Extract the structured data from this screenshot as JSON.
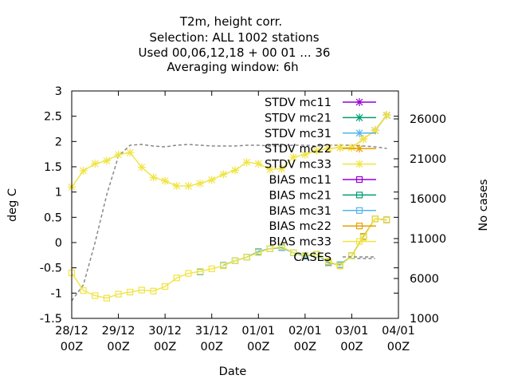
{
  "chart_data": {
    "type": "line",
    "title_lines": [
      "T2m, height corr.",
      "Selection: ALL    1002 stations",
      "Used  00,06,12,18  + 00 01 ... 36",
      "Averaging window:  6h"
    ],
    "xlabel": "Date",
    "ylabel": "deg C",
    "y2label": "No cases",
    "x_ticks": [
      {
        "line1": "28/12",
        "line2": "00Z"
      },
      {
        "line1": "29/12",
        "line2": "00Z"
      },
      {
        "line1": "30/12",
        "line2": "00Z"
      },
      {
        "line1": "31/12",
        "line2": "00Z"
      },
      {
        "line1": "01/01",
        "line2": "00Z"
      },
      {
        "line1": "02/01",
        "line2": "00Z"
      },
      {
        "line1": "03/01",
        "line2": "00Z"
      },
      {
        "line1": "04/01",
        "line2": "00Z"
      }
    ],
    "xlim": [
      0,
      168
    ],
    "ylim": [
      -1.5,
      3
    ],
    "y_ticks": [
      "-1.5",
      "-1",
      "-0.5",
      "0",
      "0.5",
      "1",
      "1.5",
      "2",
      "2.5",
      "3"
    ],
    "y2lim": [
      1000,
      29500
    ],
    "y2_ticks": [
      "1000",
      "6000",
      "11000",
      "16000",
      "21000",
      "26000"
    ],
    "x_hours": [
      0,
      6,
      12,
      18,
      24,
      30,
      36,
      42,
      48,
      54,
      60,
      66,
      72,
      78,
      84,
      90,
      96,
      102,
      108,
      114,
      120,
      126,
      132,
      138,
      144,
      150,
      156,
      162
    ],
    "series": [
      {
        "name": "STDV mc11",
        "color": "#9400d3",
        "marker": "cross",
        "axis": "y",
        "y": [
          null,
          null,
          null,
          null,
          null,
          null,
          null,
          null,
          null,
          null,
          null,
          null,
          null,
          null,
          null,
          null,
          null,
          null,
          null,
          null,
          null,
          null,
          null,
          null,
          null,
          null,
          2.22,
          2.52
        ]
      },
      {
        "name": "STDV mc21",
        "color": "#009e73",
        "marker": "cross",
        "axis": "y",
        "y": [
          null,
          null,
          null,
          null,
          null,
          null,
          null,
          null,
          null,
          null,
          null,
          null,
          null,
          null,
          null,
          null,
          null,
          null,
          null,
          null,
          null,
          null,
          null,
          null,
          null,
          null,
          2.22,
          2.52
        ]
      },
      {
        "name": "STDV mc31",
        "color": "#56b4e9",
        "marker": "cross",
        "axis": "y",
        "y": [
          null,
          null,
          null,
          null,
          null,
          null,
          null,
          null,
          null,
          null,
          null,
          null,
          null,
          null,
          null,
          null,
          null,
          null,
          null,
          null,
          null,
          null,
          null,
          null,
          null,
          null,
          2.22,
          2.52
        ]
      },
      {
        "name": "STDV mc22",
        "color": "#e69f00",
        "marker": "cross",
        "axis": "y",
        "y": [
          null,
          null,
          null,
          null,
          null,
          null,
          null,
          null,
          null,
          null,
          null,
          null,
          null,
          null,
          null,
          null,
          null,
          null,
          null,
          null,
          null,
          null,
          1.86,
          1.88,
          1.88,
          2.05,
          2.22,
          2.52
        ]
      },
      {
        "name": "STDV mc33",
        "color": "#f0e442",
        "marker": "cross",
        "axis": "y",
        "y": [
          1.1,
          1.42,
          1.56,
          1.62,
          1.74,
          1.78,
          1.49,
          1.29,
          1.22,
          1.12,
          1.12,
          1.17,
          1.24,
          1.35,
          1.43,
          1.59,
          1.56,
          1.45,
          1.46,
          1.69,
          1.74,
          1.82,
          1.86,
          1.88,
          1.88,
          2.05,
          2.22,
          2.52
        ]
      },
      {
        "name": "BIAS mc11",
        "color": "#9400d3",
        "marker": "square",
        "axis": "y",
        "y": [
          null,
          null,
          null,
          null,
          null,
          null,
          null,
          null,
          null,
          null,
          null,
          null,
          null,
          null,
          null,
          null,
          null,
          null,
          null,
          null,
          null,
          null,
          null,
          null,
          null,
          null,
          0.47,
          0.45
        ]
      },
      {
        "name": "BIAS mc21",
        "color": "#009e73",
        "marker": "square",
        "axis": "y",
        "y": [
          null,
          null,
          null,
          null,
          null,
          null,
          null,
          null,
          null,
          null,
          null,
          -0.58,
          null,
          -0.45,
          -0.36,
          -0.29,
          -0.18,
          -0.12,
          -0.1,
          -0.2,
          -0.27,
          -0.23,
          -0.4,
          -0.44,
          -0.26,
          0.12,
          0.47,
          0.45
        ]
      },
      {
        "name": "BIAS mc31",
        "color": "#56b4e9",
        "marker": "square",
        "axis": "y",
        "y": [
          null,
          null,
          null,
          null,
          null,
          null,
          null,
          null,
          null,
          null,
          null,
          -0.58,
          null,
          -0.45,
          -0.36,
          -0.29,
          -0.18,
          -0.12,
          -0.1,
          -0.2,
          -0.27,
          -0.23,
          -0.4,
          -0.44,
          -0.26,
          0.12,
          0.47,
          0.45
        ]
      },
      {
        "name": "BIAS mc22",
        "color": "#e69f00",
        "marker": "square",
        "axis": "y",
        "y": [
          null,
          null,
          null,
          null,
          null,
          null,
          null,
          null,
          null,
          null,
          null,
          null,
          null,
          null,
          null,
          null,
          null,
          null,
          null,
          null,
          null,
          null,
          -0.38,
          -0.46,
          -0.26,
          0.12,
          0.47,
          0.45
        ]
      },
      {
        "name": "BIAS mc33",
        "color": "#f0e442",
        "marker": "square",
        "axis": "y",
        "y": [
          -0.6,
          -0.95,
          -1.05,
          -1.1,
          -1.02,
          -0.98,
          -0.94,
          -0.96,
          -0.87,
          -0.7,
          -0.61,
          -0.57,
          -0.52,
          -0.46,
          -0.36,
          -0.29,
          -0.2,
          -0.12,
          -0.08,
          -0.2,
          -0.25,
          -0.23,
          -0.37,
          -0.46,
          -0.26,
          0.1,
          0.47,
          0.45
        ]
      },
      {
        "name": "CASES",
        "color": "#888888",
        "marker": "none",
        "dashed": true,
        "axis": "y2",
        "y": [
          3200,
          5200,
          10500,
          16500,
          21300,
          22700,
          22800,
          22600,
          22500,
          22700,
          22800,
          22700,
          22600,
          22600,
          22600,
          22700,
          22700,
          22600,
          22600,
          22700,
          22700,
          22600,
          22700,
          22700,
          22700,
          22600,
          22500,
          22300
        ]
      }
    ],
    "cases_segment_tail": [
      8500,
      8500,
      8500
    ],
    "legend_placement": "top-right inside plot"
  }
}
